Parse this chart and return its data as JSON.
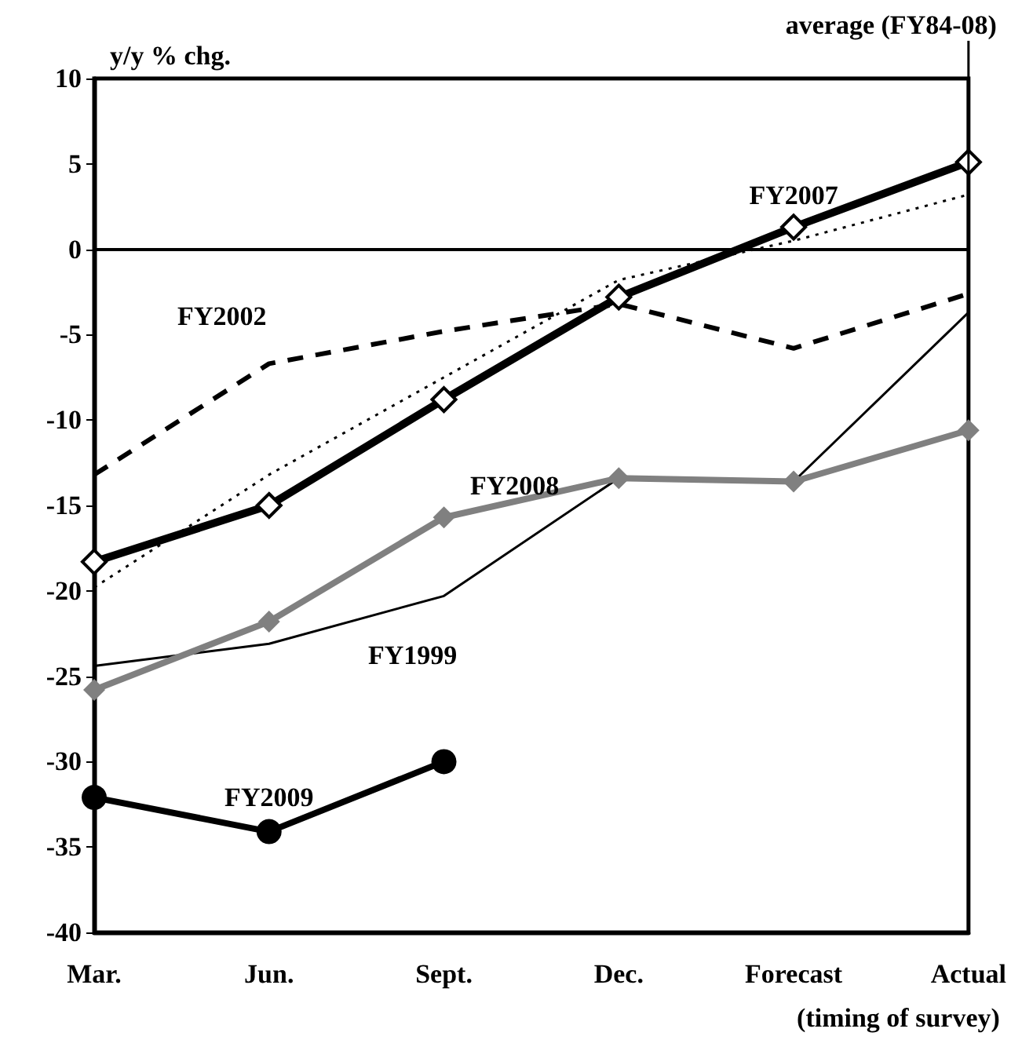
{
  "chart_data": {
    "type": "line",
    "ylabel": "y/y % chg.",
    "xlabel": "(timing of survey)",
    "categories": [
      "Mar.",
      "Jun.",
      "Sept.",
      "Dec.",
      "Forecast",
      "Actual"
    ],
    "ylim": [
      -40,
      10
    ],
    "yticks": [
      -40,
      -35,
      -30,
      -25,
      -20,
      -15,
      -10,
      -5,
      0,
      5,
      10
    ],
    "grid": false,
    "legend": false,
    "ref_lines": [
      {
        "axis": "y",
        "value": 0,
        "color": "#000000",
        "line_style": "solid"
      }
    ],
    "series": [
      {
        "name": "FY2002",
        "color": "#000000",
        "values": [
          -13.2,
          -6.7,
          -4.8,
          -3.2,
          -5.8,
          -2.6
        ],
        "marker": "none",
        "line_style": "dashed"
      },
      {
        "name": "average (FY84-08)",
        "color": "#000000",
        "values": [
          -19.8,
          -13.2,
          -7.5,
          -1.8,
          0.5,
          3.2
        ],
        "marker": "none",
        "line_style": "dotted"
      },
      {
        "name": "FY1999",
        "color": "#000000",
        "values": [
          -24.4,
          -23.1,
          -20.3,
          -13.4,
          -13.6,
          -3.7
        ],
        "marker": "none",
        "line_style": "solid"
      },
      {
        "name": "FY2008",
        "color": "#808080",
        "values": [
          -25.8,
          -21.8,
          -15.7,
          -13.4,
          -13.6,
          -10.6
        ],
        "marker": "diamond",
        "line_style": "solid"
      },
      {
        "name": "FY2007",
        "color": "#000000",
        "values": [
          -18.3,
          -15,
          -8.8,
          -2.8,
          1.3,
          5.1
        ],
        "marker": "diamond",
        "line_style": "solid"
      },
      {
        "name": "FY2009",
        "color": "#000000",
        "values": [
          -32.1,
          -34.1,
          -30,
          null,
          null,
          null
        ],
        "marker": "circle",
        "line_style": "solid"
      }
    ]
  }
}
